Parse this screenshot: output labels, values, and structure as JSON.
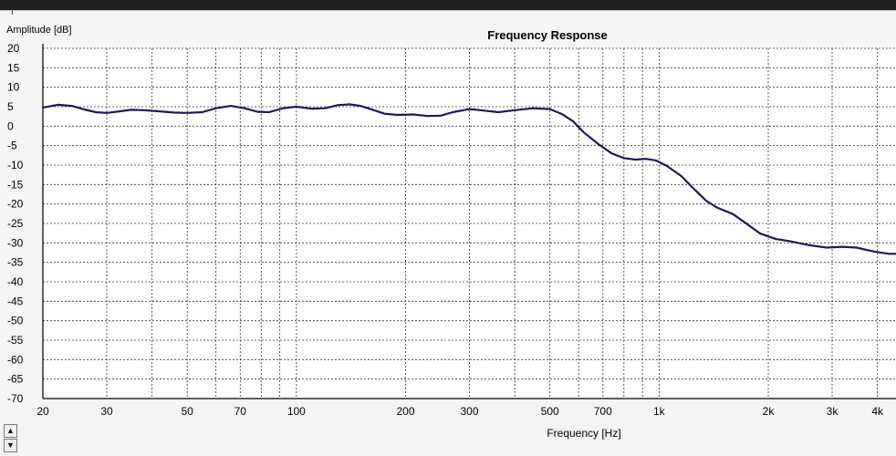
{
  "chart_data": {
    "type": "line",
    "title": "Frequency Response",
    "xlabel": "Frequency [Hz]",
    "ylabel": "Amplitude [dB]",
    "xscale": "log",
    "xlim": [
      20,
      4500
    ],
    "ylim": [
      -70,
      20
    ],
    "grid": true,
    "xticks": [
      20,
      30,
      50,
      70,
      100,
      200,
      300,
      500,
      700,
      1000,
      2000,
      3000,
      4000
    ],
    "xtick_labels": [
      "20",
      "30",
      "50",
      "70",
      "100",
      "200",
      "300",
      "500",
      "700",
      "1k",
      "2k",
      "3k",
      "4k"
    ],
    "yticks": [
      20,
      15,
      10,
      5,
      0,
      -5,
      -10,
      -15,
      -20,
      -25,
      -30,
      -35,
      -40,
      -45,
      -50,
      -55,
      -60,
      -65,
      -70
    ],
    "ytick_labels": [
      "20",
      "15",
      "10",
      "5",
      "0",
      "-5",
      "-10",
      "-15",
      "-20",
      "-25",
      "-30",
      "-35",
      "-40",
      "-45",
      "-50",
      "-55",
      "-60",
      "-65",
      "-70"
    ],
    "minor_grid_x": [
      40,
      60,
      80,
      90,
      400,
      600,
      800,
      900
    ],
    "series": [
      {
        "color": "#1a1a5e",
        "points": [
          [
            20,
            4.8
          ],
          [
            22,
            5.5
          ],
          [
            24,
            5.2
          ],
          [
            26,
            4.3
          ],
          [
            28,
            3.6
          ],
          [
            30,
            3.4
          ],
          [
            32,
            3.7
          ],
          [
            35,
            4.2
          ],
          [
            38,
            4.1
          ],
          [
            42,
            3.8
          ],
          [
            46,
            3.5
          ],
          [
            50,
            3.4
          ],
          [
            55,
            3.6
          ],
          [
            60,
            4.6
          ],
          [
            66,
            5.2
          ],
          [
            72,
            4.6
          ],
          [
            78,
            3.7
          ],
          [
            84,
            3.6
          ],
          [
            92,
            4.6
          ],
          [
            100,
            5.0
          ],
          [
            110,
            4.5
          ],
          [
            120,
            4.6
          ],
          [
            130,
            5.4
          ],
          [
            140,
            5.6
          ],
          [
            150,
            5.2
          ],
          [
            160,
            4.4
          ],
          [
            175,
            3.2
          ],
          [
            190,
            2.9
          ],
          [
            210,
            3.0
          ],
          [
            230,
            2.6
          ],
          [
            250,
            2.7
          ],
          [
            270,
            3.6
          ],
          [
            300,
            4.4
          ],
          [
            330,
            4.0
          ],
          [
            360,
            3.6
          ],
          [
            400,
            4.1
          ],
          [
            450,
            4.6
          ],
          [
            500,
            4.4
          ],
          [
            540,
            3.1
          ],
          [
            580,
            1.2
          ],
          [
            620,
            -1.6
          ],
          [
            680,
            -4.6
          ],
          [
            740,
            -7.0
          ],
          [
            800,
            -8.2
          ],
          [
            860,
            -8.6
          ],
          [
            920,
            -8.4
          ],
          [
            980,
            -8.8
          ],
          [
            1050,
            -10.2
          ],
          [
            1150,
            -12.8
          ],
          [
            1250,
            -16.2
          ],
          [
            1350,
            -19.2
          ],
          [
            1450,
            -21.0
          ],
          [
            1600,
            -22.6
          ],
          [
            1750,
            -25.2
          ],
          [
            1900,
            -27.6
          ],
          [
            2100,
            -29.0
          ],
          [
            2300,
            -29.6
          ],
          [
            2600,
            -30.6
          ],
          [
            2900,
            -31.2
          ],
          [
            3200,
            -31.0
          ],
          [
            3500,
            -31.2
          ],
          [
            3900,
            -32.2
          ],
          [
            4300,
            -32.8
          ],
          [
            4500,
            -32.8
          ]
        ]
      }
    ]
  }
}
